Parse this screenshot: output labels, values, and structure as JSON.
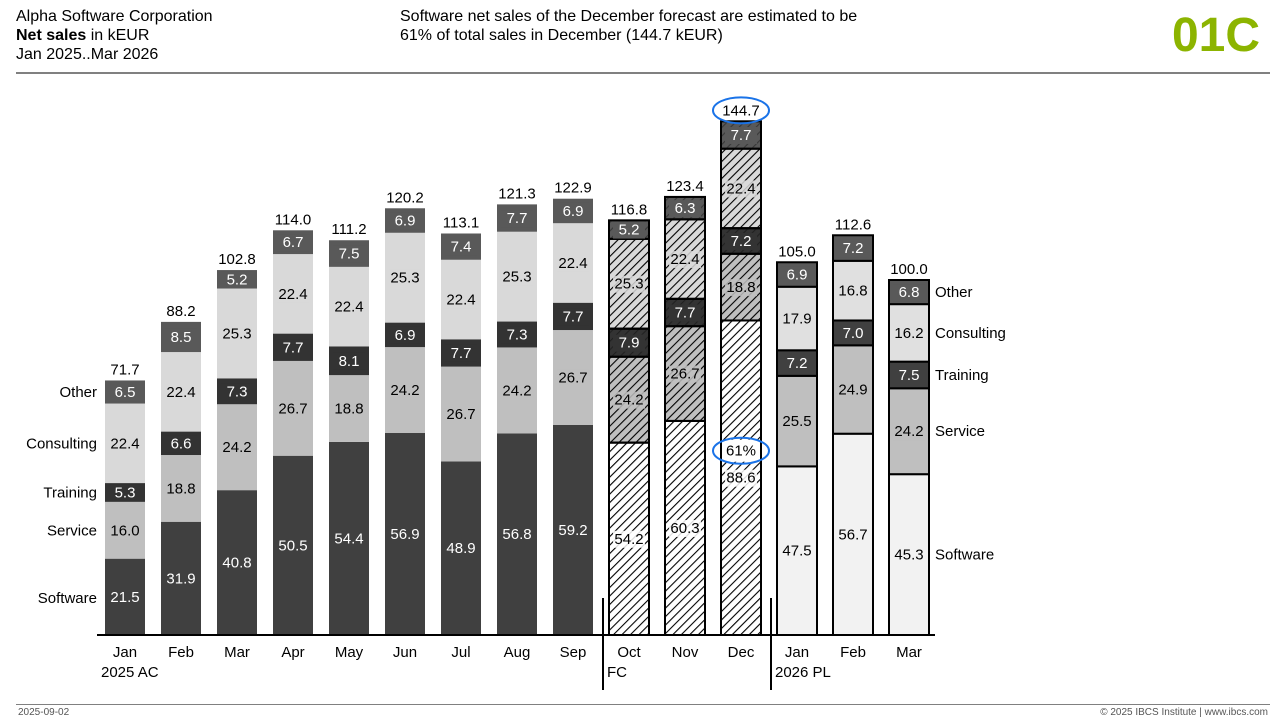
{
  "header": {
    "company": "Alpha Software Corporation",
    "measure_bold": "Net sales",
    "measure_unit": " in kEUR",
    "period": "Jan 2025..Mar 2026",
    "message_line1": "Software net sales of the December forecast are estimated to be",
    "message_line2": "61% of total sales in December (144.7 kEUR)",
    "code": "01C",
    "code_color": "#8cb400"
  },
  "footer": {
    "date": "2025-09-02",
    "copyright": "© 2025 IBCS Institute | www.ibcs.com"
  },
  "chart_data": {
    "type": "bar",
    "stacked": true,
    "categories": [
      "Jan",
      "Feb",
      "Mar",
      "Apr",
      "May",
      "Jun",
      "Jul",
      "Aug",
      "Sep",
      "Oct",
      "Nov",
      "Dec",
      "Jan",
      "Feb",
      "Mar"
    ],
    "scenarios": [
      "AC",
      "AC",
      "AC",
      "AC",
      "AC",
      "AC",
      "AC",
      "AC",
      "AC",
      "FC",
      "FC",
      "FC",
      "PL",
      "PL",
      "PL"
    ],
    "period_labels": [
      {
        "index": 0,
        "text": "2025 AC"
      },
      {
        "index": 9,
        "text": "FC"
      },
      {
        "index": 12,
        "text": "2026 PL"
      }
    ],
    "series": [
      {
        "name": "Software",
        "values": [
          21.5,
          31.9,
          40.8,
          50.5,
          54.4,
          56.9,
          48.9,
          56.8,
          59.2,
          54.2,
          60.3,
          88.6,
          47.5,
          56.7,
          45.3
        ],
        "colors": {
          "AC": "#404040",
          "PL": "#f2f2f2",
          "FC": "#ffffff"
        }
      },
      {
        "name": "Service",
        "values": [
          16.0,
          18.8,
          24.2,
          26.7,
          18.8,
          24.2,
          26.7,
          24.2,
          26.7,
          24.2,
          26.7,
          18.8,
          25.5,
          24.9,
          24.2
        ],
        "colors": {
          "AC": "#bfbfbf",
          "PL": "#bfbfbf",
          "FC": "#bfbfbf"
        }
      },
      {
        "name": "Training",
        "values": [
          5.3,
          6.6,
          7.3,
          7.7,
          8.1,
          6.9,
          7.7,
          7.3,
          7.7,
          7.9,
          7.7,
          7.2,
          7.2,
          7.0,
          7.5
        ],
        "colors": {
          "AC": "#333333",
          "PL": "#404040",
          "FC": "#333333"
        }
      },
      {
        "name": "Consulting",
        "values": [
          22.4,
          22.4,
          25.3,
          22.4,
          22.4,
          25.3,
          22.4,
          25.3,
          22.4,
          25.3,
          22.4,
          22.4,
          17.9,
          16.8,
          16.2
        ],
        "colors": {
          "AC": "#d9d9d9",
          "PL": "#e0e0e0",
          "FC": "#d9d9d9"
        }
      },
      {
        "name": "Other",
        "values": [
          6.5,
          8.5,
          5.2,
          6.7,
          7.5,
          6.9,
          7.4,
          7.7,
          6.9,
          5.2,
          6.3,
          7.7,
          6.9,
          7.2,
          6.8
        ],
        "colors": {
          "AC": "#595959",
          "PL": "#595959",
          "FC": "#595959"
        }
      }
    ],
    "totals": [
      71.7,
      88.2,
      102.8,
      114.0,
      111.2,
      120.2,
      113.1,
      121.3,
      122.9,
      116.8,
      123.4,
      144.7,
      105.0,
      112.6,
      100.0
    ],
    "highlights": [
      {
        "index": 11,
        "target": "total",
        "text": "144.7",
        "color": "#1a73e8"
      },
      {
        "index": 11,
        "target": "Software",
        "text": "61%",
        "color": "#1a73e8"
      }
    ],
    "ylim": [
      0,
      150
    ],
    "grid": false,
    "legend": "series names at left of first bar and right of last bar"
  }
}
